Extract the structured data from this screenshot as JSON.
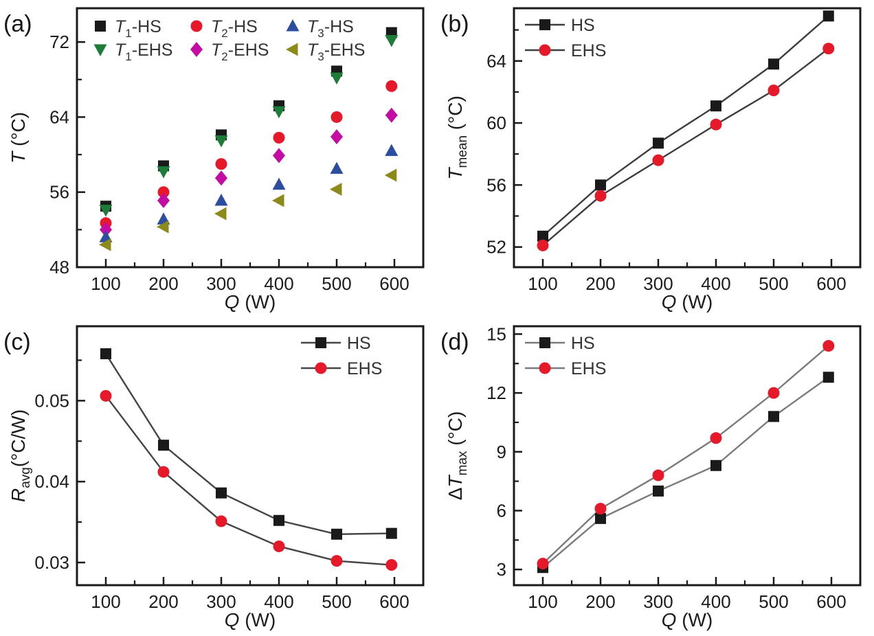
{
  "figure": {
    "background": "#ffffff",
    "frame_color": "#1a1a1a",
    "tick_text_color": "#1c1c1c"
  },
  "chart_data": [
    {
      "panel_label": "(a)",
      "type": "scatter",
      "xlabel": [
        {
          "t": "Q",
          "s": "i"
        },
        {
          "t": " (W)",
          "s": "n"
        }
      ],
      "ylabel": [
        {
          "t": "T",
          "s": "i"
        },
        {
          "t": " (°C)",
          "s": "n"
        }
      ],
      "x": [
        100,
        200,
        300,
        400,
        500,
        595
      ],
      "xlim": [
        50,
        650
      ],
      "ylim": [
        48,
        75.6
      ],
      "x_ticks": [
        100,
        200,
        300,
        400,
        500,
        600
      ],
      "x_tick_labels": [
        "100",
        "200",
        "300",
        "400",
        "500",
        "600"
      ],
      "x_minor": [
        150,
        250,
        350,
        450,
        550
      ],
      "y_ticks": [
        48,
        56,
        64,
        72
      ],
      "y_tick_labels": [
        "48",
        "56",
        "64",
        "72"
      ],
      "y_minor": [
        52,
        60,
        68
      ],
      "grid": "off",
      "legend": {
        "layout": "grid",
        "position": "inside-top"
      },
      "series": [
        {
          "name": "T1-HS",
          "label": [
            {
              "t": "T",
              "s": "i"
            },
            {
              "t": "1",
              "s": "sub"
            },
            {
              "t": "-HS",
              "s": "n"
            }
          ],
          "marker": "square",
          "color": "#1a1a1a",
          "line": false,
          "values": [
            54.5,
            58.8,
            62.1,
            65.2,
            68.9,
            73.0
          ]
        },
        {
          "name": "T1-EHS",
          "label": [
            {
              "t": "T",
              "s": "i"
            },
            {
              "t": "1",
              "s": "sub"
            },
            {
              "t": "-EHS",
              "s": "n"
            }
          ],
          "marker": "triangle-down",
          "color": "#1e7c39",
          "line": false,
          "values": [
            54.1,
            58.2,
            61.5,
            64.6,
            68.2,
            72.2
          ]
        },
        {
          "name": "T2-HS",
          "label": [
            {
              "t": "T",
              "s": "i"
            },
            {
              "t": "2",
              "s": "sub"
            },
            {
              "t": "-HS",
              "s": "n"
            }
          ],
          "marker": "circle",
          "color": "#e6192a",
          "line": false,
          "values": [
            52.7,
            56.0,
            59.0,
            61.8,
            64.0,
            67.3
          ]
        },
        {
          "name": "T2-EHS",
          "label": [
            {
              "t": "T",
              "s": "i"
            },
            {
              "t": "2",
              "s": "sub"
            },
            {
              "t": "-EHS",
              "s": "n"
            }
          ],
          "marker": "diamond",
          "color": "#c40ca5",
          "line": false,
          "values": [
            52.0,
            55.1,
            57.5,
            59.9,
            61.9,
            64.2
          ]
        },
        {
          "name": "T3-HS",
          "label": [
            {
              "t": "T",
              "s": "i"
            },
            {
              "t": "3",
              "s": "sub"
            },
            {
              "t": "-HS",
              "s": "n"
            }
          ],
          "marker": "triangle-up",
          "color": "#2d4da1",
          "line": false,
          "values": [
            51.2,
            53.1,
            55.1,
            56.8,
            58.5,
            60.4
          ]
        },
        {
          "name": "T3-EHS",
          "label": [
            {
              "t": "T",
              "s": "i"
            },
            {
              "t": "3",
              "s": "sub"
            },
            {
              "t": "-EHS",
              "s": "n"
            }
          ],
          "marker": "triangle-left",
          "color": "#8d8a1c",
          "line": false,
          "values": [
            50.4,
            52.3,
            53.7,
            55.1,
            56.3,
            57.8
          ]
        }
      ]
    },
    {
      "panel_label": "(b)",
      "type": "line",
      "xlabel": [
        {
          "t": "Q",
          "s": "i"
        },
        {
          "t": " (W)",
          "s": "n"
        }
      ],
      "ylabel": [
        {
          "t": "T",
          "s": "i"
        },
        {
          "t": "mean",
          "s": "sub"
        },
        {
          "t": " (°C)",
          "s": "n"
        }
      ],
      "x": [
        100,
        200,
        300,
        400,
        500,
        595
      ],
      "xlim": [
        50,
        650
      ],
      "ylim": [
        50.7,
        67.4
      ],
      "x_ticks": [
        100,
        200,
        300,
        400,
        500,
        600
      ],
      "x_tick_labels": [
        "100",
        "200",
        "300",
        "400",
        "500",
        "600"
      ],
      "x_minor": [
        150,
        250,
        350,
        450,
        550
      ],
      "y_ticks": [
        52,
        56,
        60,
        64
      ],
      "y_tick_labels": [
        "52",
        "56",
        "60",
        "64"
      ],
      "y_minor": [
        54,
        58,
        62,
        66
      ],
      "grid": "off",
      "legend": {
        "layout": "list",
        "position": "top-left"
      },
      "series": [
        {
          "name": "HS",
          "label": [
            {
              "t": "HS",
              "s": "n"
            }
          ],
          "marker": "square",
          "color": "#1a1a1a",
          "line": true,
          "line_color": "#3d3d3d",
          "values": [
            52.7,
            56.0,
            58.7,
            61.1,
            63.8,
            66.9
          ]
        },
        {
          "name": "EHS",
          "label": [
            {
              "t": "EHS",
              "s": "n"
            }
          ],
          "marker": "circle",
          "color": "#e6192a",
          "line": true,
          "line_color": "#3d3d3d",
          "values": [
            52.1,
            55.3,
            57.6,
            59.9,
            62.1,
            64.8
          ]
        }
      ]
    },
    {
      "panel_label": "(c)",
      "type": "line",
      "xlabel": [
        {
          "t": "Q",
          "s": "i"
        },
        {
          "t": " (W)",
          "s": "n"
        }
      ],
      "ylabel": [
        {
          "t": "R",
          "s": "i"
        },
        {
          "t": "avg",
          "s": "sub"
        },
        {
          "t": "(°C/W)",
          "s": "n"
        }
      ],
      "x": [
        100,
        200,
        300,
        400,
        500,
        595
      ],
      "xlim": [
        50,
        650
      ],
      "ylim": [
        0.0272,
        0.0592
      ],
      "x_ticks": [
        100,
        200,
        300,
        400,
        500,
        600
      ],
      "x_tick_labels": [
        "100",
        "200",
        "300",
        "400",
        "500",
        "600"
      ],
      "x_minor": [
        150,
        250,
        350,
        450,
        550
      ],
      "y_ticks": [
        0.03,
        0.04,
        0.05
      ],
      "y_tick_labels": [
        "0.03",
        "0.04",
        "0.05"
      ],
      "y_minor": [
        0.035,
        0.045,
        0.055
      ],
      "grid": "off",
      "legend": {
        "layout": "list",
        "position": "top-right"
      },
      "series": [
        {
          "name": "HS",
          "label": [
            {
              "t": "HS",
              "s": "n"
            }
          ],
          "marker": "square",
          "color": "#1a1a1a",
          "line": true,
          "line_color": "#454545",
          "values": [
            0.0558,
            0.0445,
            0.0386,
            0.0352,
            0.0335,
            0.0336
          ]
        },
        {
          "name": "EHS",
          "label": [
            {
              "t": "EHS",
              "s": "n"
            }
          ],
          "marker": "circle",
          "color": "#e6192a",
          "line": true,
          "line_color": "#454545",
          "values": [
            0.0506,
            0.0412,
            0.0351,
            0.032,
            0.0302,
            0.0297
          ]
        }
      ]
    },
    {
      "panel_label": "(d)",
      "type": "line",
      "xlabel": [
        {
          "t": "Q",
          "s": "i"
        },
        {
          "t": " (W)",
          "s": "n"
        }
      ],
      "ylabel": [
        {
          "t": "Δ",
          "s": "n"
        },
        {
          "t": "T",
          "s": "i"
        },
        {
          "t": "max",
          "s": "sub"
        },
        {
          "t": " (°C)",
          "s": "n"
        }
      ],
      "x": [
        100,
        200,
        300,
        400,
        500,
        595
      ],
      "xlim": [
        50,
        650
      ],
      "ylim": [
        2.2,
        15.4
      ],
      "x_ticks": [
        100,
        200,
        300,
        400,
        500,
        600
      ],
      "x_tick_labels": [
        "100",
        "200",
        "300",
        "400",
        "500",
        "600"
      ],
      "x_minor": [
        150,
        250,
        350,
        450,
        550
      ],
      "y_ticks": [
        3,
        6,
        9,
        12,
        15
      ],
      "y_tick_labels": [
        "3",
        "6",
        "9",
        "12",
        "15"
      ],
      "y_minor": [
        4.5,
        7.5,
        10.5,
        13.5
      ],
      "grid": "off",
      "legend": {
        "layout": "list",
        "position": "top-left"
      },
      "series": [
        {
          "name": "HS",
          "label": [
            {
              "t": "HS",
              "s": "n"
            }
          ],
          "marker": "square",
          "color": "#1a1a1a",
          "line": true,
          "line_color": "#7b7b7b",
          "values": [
            3.1,
            5.6,
            7.0,
            8.3,
            10.8,
            12.8
          ]
        },
        {
          "name": "EHS",
          "label": [
            {
              "t": "EHS",
              "s": "n"
            }
          ],
          "marker": "circle",
          "color": "#e6192a",
          "line": true,
          "line_color": "#7b7b7b",
          "values": [
            3.3,
            6.1,
            7.8,
            9.7,
            12.0,
            14.4
          ]
        }
      ]
    }
  ]
}
